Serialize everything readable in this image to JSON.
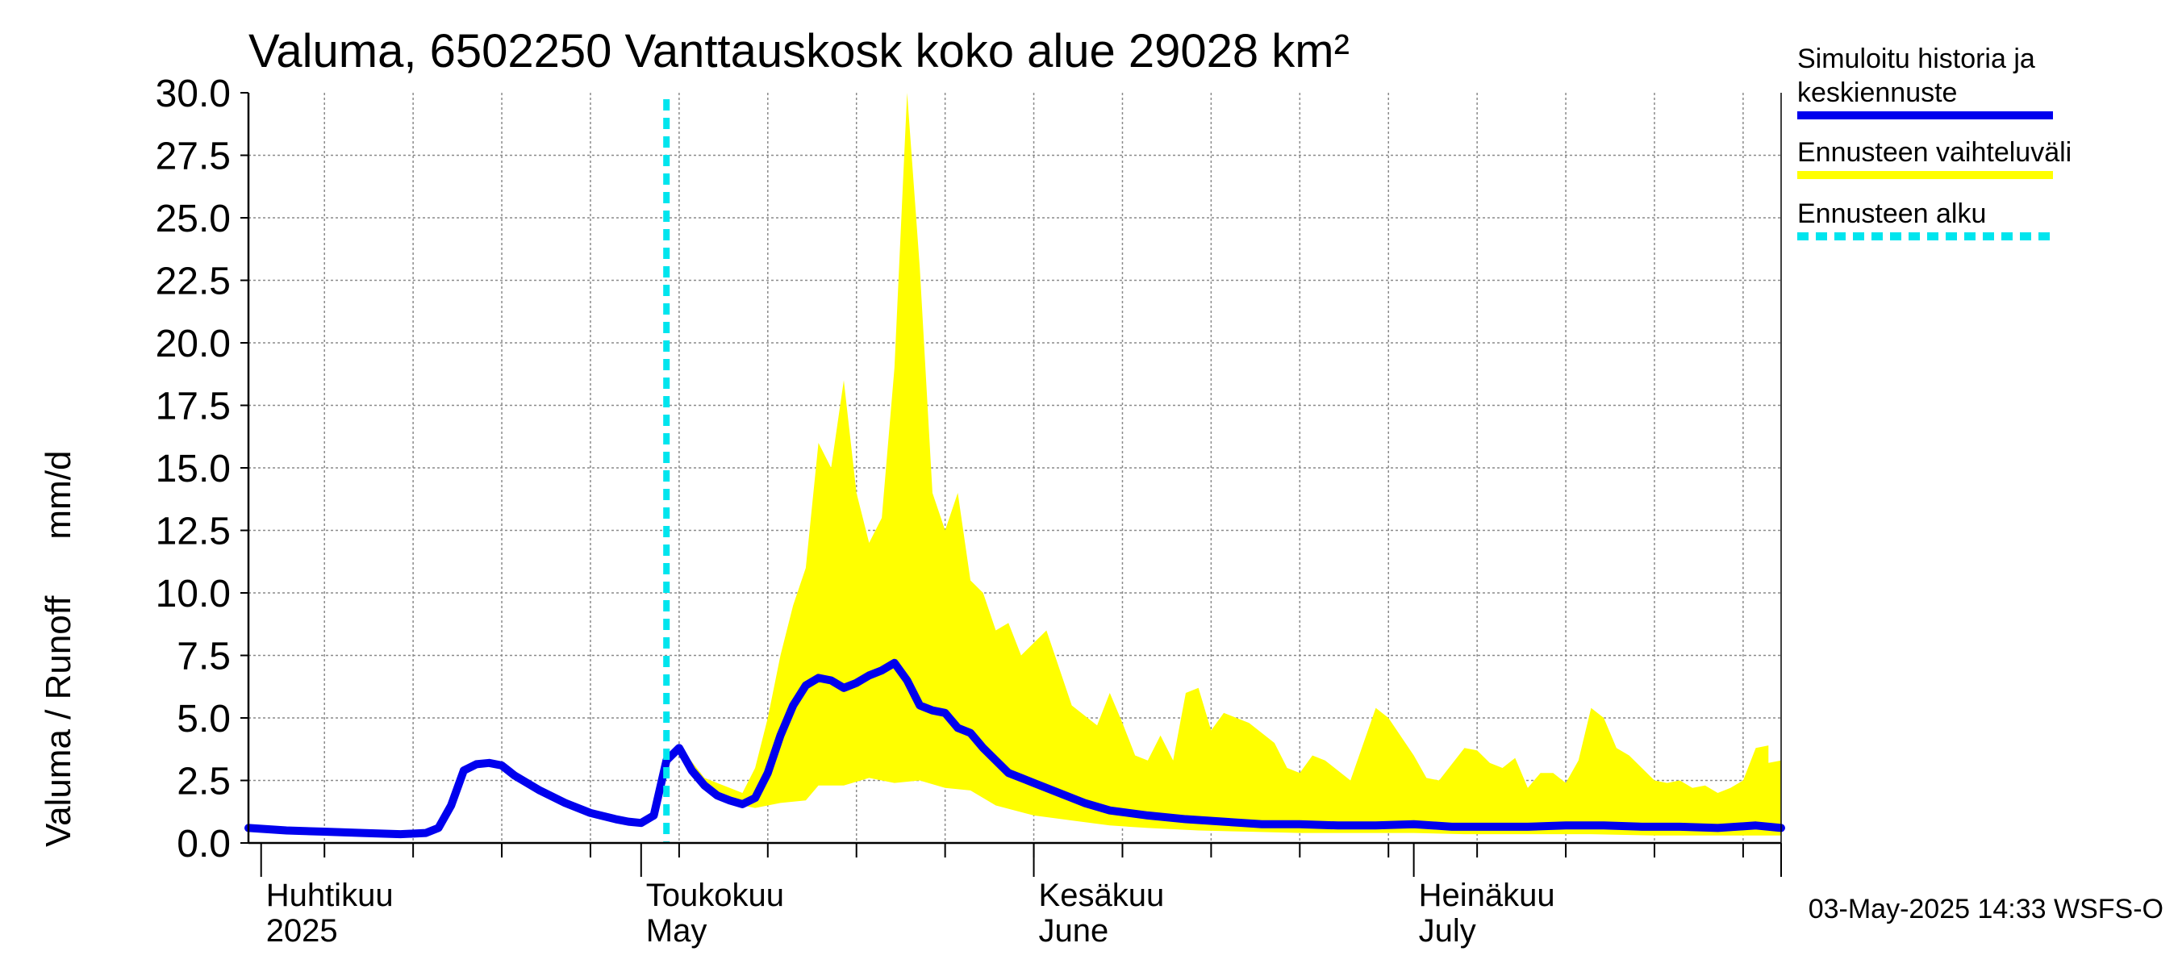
{
  "chart_data": {
    "type": "area",
    "title": "Valuma, 6502250 Vanttauskosk koko alue 29028 km²",
    "ylabel": "Valuma / Runoff",
    "yunit": "mm/d",
    "xlabel": "",
    "ylim": [
      0,
      30
    ],
    "yticks": [
      "0.0",
      "2.5",
      "5.0",
      "7.5",
      "10.0",
      "12.5",
      "15.0",
      "17.5",
      "20.0",
      "22.5",
      "25.0",
      "27.5",
      "30.0"
    ],
    "xlim": [
      "2025-03-31",
      "2025-07-30"
    ],
    "month_labels": [
      {
        "date": "2025-04-01",
        "line1": "Huhtikuu",
        "line2": "2025"
      },
      {
        "date": "2025-05-01",
        "line1": "Toukokuu",
        "line2": "May"
      },
      {
        "date": "2025-06-01",
        "line1": "Kesäkuu",
        "line2": "June"
      },
      {
        "date": "2025-07-01",
        "line1": "Heinäkuu",
        "line2": "July"
      }
    ],
    "grid": true,
    "legend_placement": "right",
    "legend": [
      {
        "label_lines": [
          "Simuloitu historia ja",
          "keskiennuste"
        ],
        "color": "#0000ee",
        "style": "solid"
      },
      {
        "label_lines": [
          "Ennusteen vaihteluväli"
        ],
        "color": "#ffff00",
        "style": "solid"
      },
      {
        "label_lines": [
          "Ennusteen alku"
        ],
        "color": "#00e5ee",
        "style": "dashed"
      }
    ],
    "forecast_start": "2025-05-03",
    "series": [
      {
        "name": "Simuloitu historia ja keskiennuste",
        "color": "#0000ee",
        "points": [
          [
            "2025-03-31",
            0.6
          ],
          [
            "2025-04-03",
            0.5
          ],
          [
            "2025-04-06",
            0.45
          ],
          [
            "2025-04-09",
            0.4
          ],
          [
            "2025-04-12",
            0.35
          ],
          [
            "2025-04-14",
            0.4
          ],
          [
            "2025-04-15",
            0.6
          ],
          [
            "2025-04-16",
            1.5
          ],
          [
            "2025-04-17",
            2.9
          ],
          [
            "2025-04-18",
            3.15
          ],
          [
            "2025-04-19",
            3.2
          ],
          [
            "2025-04-20",
            3.1
          ],
          [
            "2025-04-21",
            2.7
          ],
          [
            "2025-04-23",
            2.1
          ],
          [
            "2025-04-25",
            1.6
          ],
          [
            "2025-04-27",
            1.2
          ],
          [
            "2025-04-29",
            0.95
          ],
          [
            "2025-04-30",
            0.85
          ],
          [
            "2025-05-01",
            0.8
          ],
          [
            "2025-05-02",
            1.1
          ],
          [
            "2025-05-03",
            3.3
          ],
          [
            "2025-05-04",
            3.8
          ],
          [
            "2025-05-05",
            2.9
          ],
          [
            "2025-05-06",
            2.3
          ],
          [
            "2025-05-07",
            1.9
          ],
          [
            "2025-05-08",
            1.7
          ],
          [
            "2025-05-09",
            1.55
          ],
          [
            "2025-05-10",
            1.8
          ],
          [
            "2025-05-11",
            2.8
          ],
          [
            "2025-05-12",
            4.3
          ],
          [
            "2025-05-13",
            5.5
          ],
          [
            "2025-05-14",
            6.3
          ],
          [
            "2025-05-15",
            6.6
          ],
          [
            "2025-05-16",
            6.5
          ],
          [
            "2025-05-17",
            6.2
          ],
          [
            "2025-05-18",
            6.4
          ],
          [
            "2025-05-19",
            6.7
          ],
          [
            "2025-05-20",
            6.9
          ],
          [
            "2025-05-21",
            7.2
          ],
          [
            "2025-05-22",
            6.5
          ],
          [
            "2025-05-23",
            5.5
          ],
          [
            "2025-05-24",
            5.3
          ],
          [
            "2025-05-25",
            5.2
          ],
          [
            "2025-05-26",
            4.6
          ],
          [
            "2025-05-27",
            4.4
          ],
          [
            "2025-05-28",
            3.8
          ],
          [
            "2025-05-29",
            3.3
          ],
          [
            "2025-05-30",
            2.8
          ],
          [
            "2025-06-01",
            2.4
          ],
          [
            "2025-06-03",
            2.0
          ],
          [
            "2025-06-05",
            1.6
          ],
          [
            "2025-06-07",
            1.3
          ],
          [
            "2025-06-10",
            1.1
          ],
          [
            "2025-06-13",
            0.95
          ],
          [
            "2025-06-16",
            0.85
          ],
          [
            "2025-06-19",
            0.75
          ],
          [
            "2025-06-22",
            0.75
          ],
          [
            "2025-06-25",
            0.7
          ],
          [
            "2025-06-28",
            0.7
          ],
          [
            "2025-07-01",
            0.75
          ],
          [
            "2025-07-04",
            0.65
          ],
          [
            "2025-07-07",
            0.65
          ],
          [
            "2025-07-10",
            0.65
          ],
          [
            "2025-07-13",
            0.7
          ],
          [
            "2025-07-16",
            0.7
          ],
          [
            "2025-07-19",
            0.65
          ],
          [
            "2025-07-22",
            0.65
          ],
          [
            "2025-07-25",
            0.6
          ],
          [
            "2025-07-28",
            0.7
          ],
          [
            "2025-07-30",
            0.6
          ]
        ]
      },
      {
        "name": "Ennusteen vaihteluväli",
        "color": "#ffff00",
        "upper": [
          [
            "2025-05-04",
            3.9
          ],
          [
            "2025-05-06",
            2.6
          ],
          [
            "2025-05-08",
            2.2
          ],
          [
            "2025-05-09",
            2.0
          ],
          [
            "2025-05-10",
            3.0
          ],
          [
            "2025-05-11",
            5.0
          ],
          [
            "2025-05-12",
            7.5
          ],
          [
            "2025-05-13",
            9.5
          ],
          [
            "2025-05-14",
            11.0
          ],
          [
            "2025-05-15",
            16.0
          ],
          [
            "2025-05-16",
            15.0
          ],
          [
            "2025-05-17",
            18.5
          ],
          [
            "2025-05-18",
            14.0
          ],
          [
            "2025-05-19",
            12.0
          ],
          [
            "2025-05-20",
            13.0
          ],
          [
            "2025-05-21",
            19.0
          ],
          [
            "2025-05-22",
            30.0
          ],
          [
            "2025-05-23",
            23.0
          ],
          [
            "2025-05-24",
            14.0
          ],
          [
            "2025-05-25",
            12.5
          ],
          [
            "2025-05-26",
            14.0
          ],
          [
            "2025-05-27",
            10.5
          ],
          [
            "2025-05-28",
            10.0
          ],
          [
            "2025-05-29",
            8.5
          ],
          [
            "2025-05-30",
            8.8
          ],
          [
            "2025-05-31",
            7.5
          ],
          [
            "2025-06-02",
            8.5
          ],
          [
            "2025-06-03",
            7.0
          ],
          [
            "2025-06-04",
            5.5
          ],
          [
            "2025-06-06",
            4.7
          ],
          [
            "2025-06-07",
            6.0
          ],
          [
            "2025-06-08",
            4.8
          ],
          [
            "2025-06-09",
            3.5
          ],
          [
            "2025-06-10",
            3.3
          ],
          [
            "2025-06-11",
            4.3
          ],
          [
            "2025-06-12",
            3.3
          ],
          [
            "2025-06-13",
            6.0
          ],
          [
            "2025-06-14",
            6.2
          ],
          [
            "2025-06-15",
            4.5
          ],
          [
            "2025-06-16",
            5.2
          ],
          [
            "2025-06-18",
            4.8
          ],
          [
            "2025-06-20",
            4.0
          ],
          [
            "2025-06-21",
            3.0
          ],
          [
            "2025-06-22",
            2.8
          ],
          [
            "2025-06-23",
            3.5
          ],
          [
            "2025-06-24",
            3.3
          ],
          [
            "2025-06-26",
            2.5
          ],
          [
            "2025-06-28",
            5.4
          ],
          [
            "2025-06-29",
            5.0
          ],
          [
            "2025-07-01",
            3.5
          ],
          [
            "2025-07-02",
            2.6
          ],
          [
            "2025-07-03",
            2.5
          ],
          [
            "2025-07-05",
            3.8
          ],
          [
            "2025-07-06",
            3.7
          ],
          [
            "2025-07-07",
            3.2
          ],
          [
            "2025-07-08",
            3.0
          ],
          [
            "2025-07-09",
            3.4
          ],
          [
            "2025-07-10",
            2.2
          ],
          [
            "2025-07-11",
            2.8
          ],
          [
            "2025-07-12",
            2.8
          ],
          [
            "2025-07-13",
            2.4
          ],
          [
            "2025-07-14",
            3.3
          ],
          [
            "2025-07-15",
            5.4
          ],
          [
            "2025-07-16",
            5.0
          ],
          [
            "2025-07-17",
            3.8
          ],
          [
            "2025-07-18",
            3.5
          ],
          [
            "2025-07-19",
            3.0
          ],
          [
            "2025-07-20",
            2.5
          ],
          [
            "2025-07-21",
            2.4
          ],
          [
            "2025-07-22",
            2.5
          ],
          [
            "2025-07-23",
            2.2
          ],
          [
            "2025-07-24",
            2.3
          ],
          [
            "2025-07-25",
            2.0
          ],
          [
            "2025-07-26",
            2.2
          ],
          [
            "2025-07-27",
            2.5
          ],
          [
            "2025-07-28",
            3.8
          ],
          [
            "2025-07-29",
            3.9
          ],
          [
            "2025-07-29",
            3.2
          ],
          [
            "2025-07-30",
            3.3
          ]
        ],
        "lower": [
          [
            "2025-05-04",
            3.6
          ],
          [
            "2025-05-06",
            2.2
          ],
          [
            "2025-05-08",
            1.6
          ],
          [
            "2025-05-10",
            1.4
          ],
          [
            "2025-05-12",
            1.6
          ],
          [
            "2025-05-14",
            1.7
          ],
          [
            "2025-05-15",
            2.3
          ],
          [
            "2025-05-17",
            2.3
          ],
          [
            "2025-05-19",
            2.6
          ],
          [
            "2025-05-21",
            2.4
          ],
          [
            "2025-05-23",
            2.5
          ],
          [
            "2025-05-25",
            2.2
          ],
          [
            "2025-05-27",
            2.1
          ],
          [
            "2025-05-29",
            1.5
          ],
          [
            "2025-06-01",
            1.1
          ],
          [
            "2025-06-04",
            0.9
          ],
          [
            "2025-06-07",
            0.7
          ],
          [
            "2025-06-10",
            0.6
          ],
          [
            "2025-06-14",
            0.5
          ],
          [
            "2025-06-18",
            0.45
          ],
          [
            "2025-06-22",
            0.4
          ],
          [
            "2025-06-26",
            0.4
          ],
          [
            "2025-07-01",
            0.4
          ],
          [
            "2025-07-05",
            0.35
          ],
          [
            "2025-07-10",
            0.35
          ],
          [
            "2025-07-15",
            0.35
          ],
          [
            "2025-07-20",
            0.3
          ],
          [
            "2025-07-25",
            0.3
          ],
          [
            "2025-07-30",
            0.3
          ]
        ]
      }
    ]
  },
  "footer": "03-May-2025 14:33 WSFS-O"
}
